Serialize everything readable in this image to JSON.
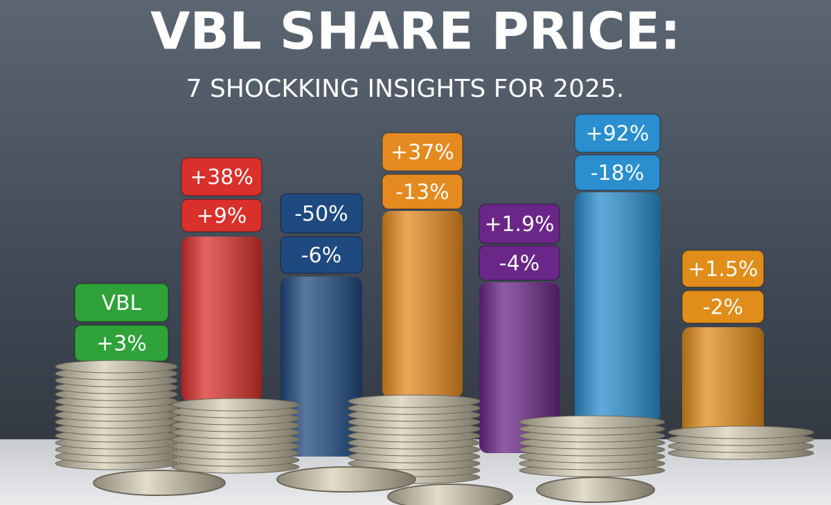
{
  "header": {
    "title": "VBL SHARE PRICE:",
    "subtitle": "7 SHOCKKING INSIGHTS FOR 2025."
  },
  "columns": [
    {
      "labels": [
        "VBL",
        "+3%"
      ]
    },
    {
      "labels": [
        "+38%",
        "+9%"
      ]
    },
    {
      "labels": [
        "-50%",
        "-6%"
      ]
    },
    {
      "labels": [
        "+37%",
        "-13%"
      ]
    },
    {
      "labels": [
        "+1.9%",
        "-4%"
      ]
    },
    {
      "labels": [
        "+92%",
        "-18%"
      ]
    },
    {
      "labels": [
        "+1.5%",
        "-2%"
      ]
    }
  ]
}
